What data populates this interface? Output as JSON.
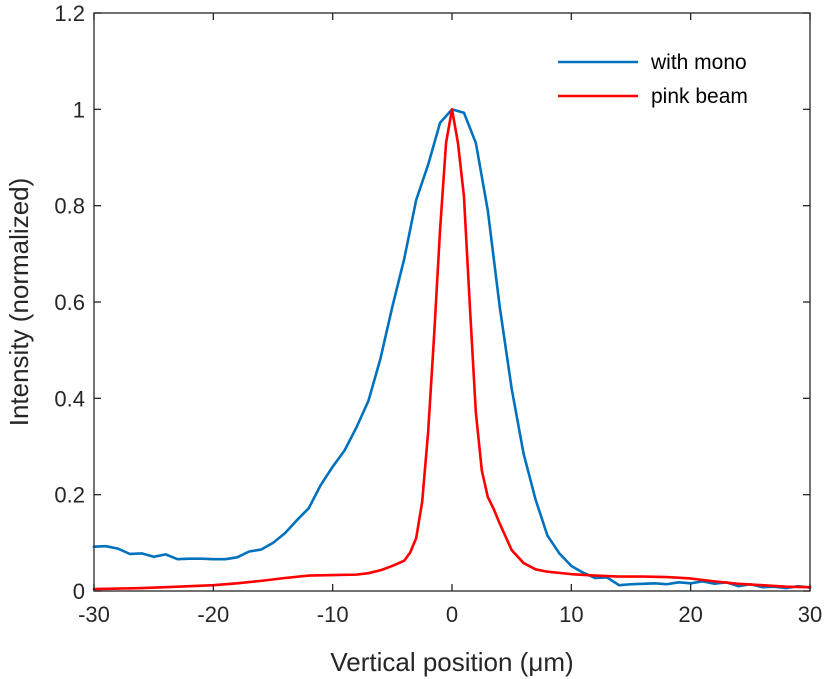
{
  "chart_data": {
    "type": "line",
    "title": "",
    "xlabel": "Vertical position (μm)",
    "ylabel": "Intensity (normalized)",
    "xlim": [
      -30,
      30
    ],
    "ylim": [
      0,
      1.2
    ],
    "xticks": [
      -30,
      -20,
      -10,
      0,
      10,
      20,
      30
    ],
    "yticks": [
      0,
      0.2,
      0.4,
      0.6,
      0.8,
      1,
      1.2
    ],
    "xtick_labels": [
      "-30",
      "-20",
      "-10",
      "0",
      "10",
      "20",
      "30"
    ],
    "ytick_labels": [
      "0",
      "0.2",
      "0.4",
      "0.6",
      "0.8",
      "1",
      "1.2"
    ],
    "grid": false,
    "legend_position": "top-right",
    "series": [
      {
        "name": "with mono",
        "color": "#0072BD",
        "x": [
          -30,
          -29,
          -28,
          -27,
          -26,
          -25,
          -24,
          -23,
          -22,
          -21,
          -20,
          -19,
          -18,
          -17,
          -16,
          -15,
          -14,
          -13,
          -12,
          -11,
          -10,
          -9,
          -8,
          -7,
          -6,
          -5,
          -4,
          -3,
          -2,
          -1,
          0,
          1,
          2,
          3,
          4,
          5,
          6,
          7,
          8,
          9,
          10,
          11,
          12,
          13,
          14,
          15,
          16,
          17,
          18,
          19,
          20,
          21,
          22,
          23,
          24,
          25,
          26,
          27,
          28,
          29,
          30
        ],
        "values": [
          0.092,
          0.093,
          0.088,
          0.077,
          0.078,
          0.071,
          0.076,
          0.066,
          0.067,
          0.067,
          0.066,
          0.066,
          0.07,
          0.082,
          0.086,
          0.1,
          0.12,
          0.147,
          0.172,
          0.22,
          0.258,
          0.292,
          0.34,
          0.395,
          0.482,
          0.59,
          0.69,
          0.812,
          0.885,
          0.972,
          1.0,
          0.993,
          0.93,
          0.79,
          0.59,
          0.42,
          0.285,
          0.19,
          0.115,
          0.078,
          0.052,
          0.038,
          0.027,
          0.028,
          0.012,
          0.014,
          0.015,
          0.016,
          0.014,
          0.018,
          0.016,
          0.02,
          0.015,
          0.018,
          0.01,
          0.014,
          0.008,
          0.009,
          0.006,
          0.01,
          0.007
        ]
      },
      {
        "name": "pink beam",
        "color": "#FF0000",
        "x": [
          -30,
          -28,
          -26,
          -24,
          -22,
          -20,
          -18,
          -16,
          -14,
          -12,
          -10,
          -8,
          -7,
          -6,
          -5,
          -4,
          -3.5,
          -3,
          -2.5,
          -2,
          -1.5,
          -1,
          -0.5,
          0,
          0.5,
          1,
          1.5,
          2,
          2.5,
          3,
          3.5,
          4,
          5,
          6,
          7,
          8,
          10,
          12,
          14,
          16,
          18,
          20,
          22,
          24,
          26,
          28,
          30
        ],
        "values": [
          0.004,
          0.005,
          0.006,
          0.008,
          0.01,
          0.012,
          0.016,
          0.021,
          0.027,
          0.032,
          0.033,
          0.034,
          0.037,
          0.043,
          0.052,
          0.063,
          0.08,
          0.11,
          0.185,
          0.33,
          0.53,
          0.75,
          0.93,
          1.0,
          0.93,
          0.82,
          0.59,
          0.37,
          0.25,
          0.195,
          0.17,
          0.14,
          0.085,
          0.058,
          0.045,
          0.04,
          0.035,
          0.032,
          0.03,
          0.03,
          0.029,
          0.026,
          0.02,
          0.015,
          0.012,
          0.009,
          0.008
        ]
      }
    ]
  }
}
